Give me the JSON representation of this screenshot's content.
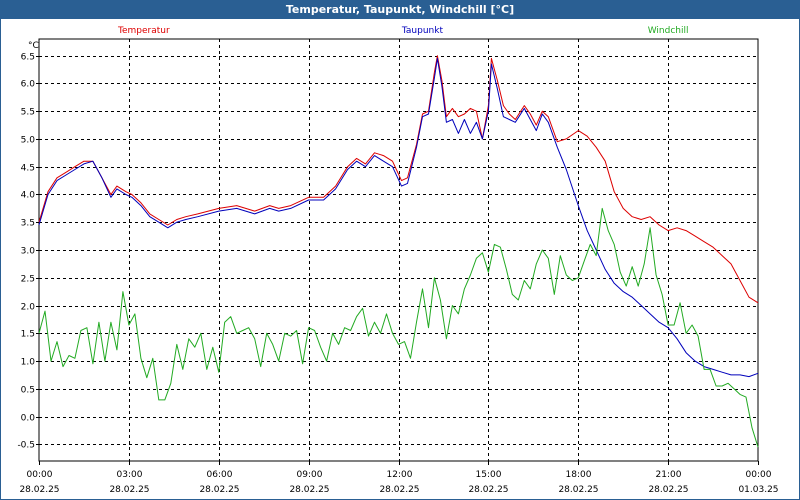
{
  "window": {
    "title": "Temperatur, Taupunkt, Windchill [°C]"
  },
  "chart_data": {
    "type": "line",
    "title": "Temperatur, Taupunkt, Windchill [°C]",
    "ylabel": "°C",
    "ylim": [
      -0.8,
      6.8
    ],
    "xlim": [
      0,
      24
    ],
    "grid": true,
    "y_ticks": [
      "6.5",
      "6.0",
      "5.5",
      "5.0",
      "4.5",
      "4.0",
      "3.5",
      "3.0",
      "2.5",
      "2.0",
      "1.5",
      "1.0",
      "0.5",
      "0.0",
      "-0.5"
    ],
    "y_tick_values": [
      6.5,
      6.0,
      5.5,
      5.0,
      4.5,
      4.0,
      3.5,
      3.0,
      2.5,
      2.0,
      1.5,
      1.0,
      0.5,
      0.0,
      -0.5
    ],
    "x_ticks": [
      {
        "x": 0,
        "time": "00:00",
        "date": "28.02.25"
      },
      {
        "x": 3,
        "time": "03:00",
        "date": "28.02.25"
      },
      {
        "x": 6,
        "time": "06:00",
        "date": "28.02.25"
      },
      {
        "x": 9,
        "time": "09:00",
        "date": "28.02.25"
      },
      {
        "x": 12,
        "time": "12:00",
        "date": "28.02.25"
      },
      {
        "x": 15,
        "time": "15:00",
        "date": "28.02.25"
      },
      {
        "x": 18,
        "time": "18:00",
        "date": "28.02.25"
      },
      {
        "x": 21,
        "time": "21:00",
        "date": "28.02.25"
      },
      {
        "x": 24,
        "time": "00:00",
        "date": "01.03.25"
      }
    ],
    "series": [
      {
        "name": "Temperatur",
        "color": "#dd0000",
        "legend_x_hours": 3.5,
        "x": [
          0,
          0.3,
          0.6,
          0.9,
          1.2,
          1.5,
          1.8,
          2.1,
          2.4,
          2.6,
          2.9,
          3.1,
          3.4,
          3.7,
          4.0,
          4.3,
          4.6,
          4.9,
          5.3,
          6.0,
          6.6,
          7.2,
          7.7,
          8.0,
          8.4,
          9.0,
          9.5,
          9.9,
          10.3,
          10.6,
          10.9,
          11.2,
          11.5,
          11.8,
          12.1,
          12.3,
          12.6,
          12.8,
          13.0,
          13.2,
          13.3,
          13.45,
          13.6,
          13.8,
          14.0,
          14.2,
          14.4,
          14.6,
          14.8,
          15.0,
          15.1,
          15.3,
          15.5,
          15.7,
          15.9,
          16.2,
          16.4,
          16.6,
          16.8,
          17.0,
          17.3,
          17.6,
          18.0,
          18.3,
          18.6,
          18.9,
          19.2,
          19.5,
          19.8,
          20.1,
          20.4,
          20.7,
          21.0,
          21.3,
          21.6,
          21.9,
          22.2,
          22.5,
          22.8,
          23.1,
          23.4,
          23.7,
          24.0
        ],
        "values": [
          3.5,
          4.05,
          4.3,
          4.4,
          4.5,
          4.6,
          4.6,
          4.3,
          4.0,
          4.15,
          4.05,
          4.0,
          3.85,
          3.65,
          3.55,
          3.45,
          3.55,
          3.6,
          3.65,
          3.75,
          3.8,
          3.7,
          3.8,
          3.75,
          3.8,
          3.95,
          3.95,
          4.15,
          4.5,
          4.65,
          4.55,
          4.75,
          4.7,
          4.6,
          4.25,
          4.3,
          4.9,
          5.45,
          5.5,
          6.2,
          6.5,
          6.05,
          5.4,
          5.55,
          5.4,
          5.45,
          5.55,
          5.5,
          5.0,
          5.6,
          6.45,
          6.05,
          5.6,
          5.45,
          5.35,
          5.6,
          5.45,
          5.25,
          5.5,
          5.4,
          4.95,
          5.0,
          5.15,
          5.05,
          4.85,
          4.6,
          4.05,
          3.75,
          3.6,
          3.55,
          3.6,
          3.45,
          3.35,
          3.4,
          3.35,
          3.25,
          3.15,
          3.05,
          2.9,
          2.75,
          2.45,
          2.15,
          2.05
        ]
      },
      {
        "name": "Taupunkt",
        "color": "#0000bb",
        "legend_x_hours": 12.8,
        "x": [
          0,
          0.3,
          0.6,
          0.9,
          1.2,
          1.5,
          1.8,
          2.1,
          2.4,
          2.6,
          2.9,
          3.1,
          3.4,
          3.7,
          4.0,
          4.3,
          4.6,
          4.9,
          5.3,
          6.0,
          6.6,
          7.2,
          7.7,
          8.0,
          8.4,
          9.0,
          9.5,
          9.9,
          10.3,
          10.6,
          10.9,
          11.2,
          11.5,
          11.8,
          12.1,
          12.3,
          12.6,
          12.8,
          13.0,
          13.2,
          13.3,
          13.45,
          13.6,
          13.8,
          14.0,
          14.2,
          14.4,
          14.6,
          14.8,
          15.0,
          15.1,
          15.3,
          15.5,
          15.7,
          15.9,
          16.2,
          16.4,
          16.6,
          16.8,
          17.0,
          17.3,
          17.6,
          18.0,
          18.3,
          18.6,
          18.9,
          19.2,
          19.5,
          19.8,
          20.1,
          20.4,
          20.7,
          21.0,
          21.3,
          21.6,
          21.9,
          22.2,
          22.5,
          22.8,
          23.1,
          23.4,
          23.7,
          24.0
        ],
        "values": [
          3.45,
          4.0,
          4.25,
          4.35,
          4.45,
          4.55,
          4.6,
          4.3,
          3.95,
          4.1,
          4.0,
          3.95,
          3.8,
          3.6,
          3.5,
          3.4,
          3.5,
          3.55,
          3.6,
          3.7,
          3.75,
          3.65,
          3.75,
          3.7,
          3.75,
          3.9,
          3.9,
          4.1,
          4.45,
          4.6,
          4.5,
          4.7,
          4.6,
          4.5,
          4.15,
          4.2,
          4.85,
          5.4,
          5.45,
          6.1,
          6.45,
          5.95,
          5.3,
          5.35,
          5.1,
          5.35,
          5.1,
          5.3,
          5.0,
          5.5,
          6.35,
          5.9,
          5.4,
          5.35,
          5.3,
          5.55,
          5.35,
          5.15,
          5.45,
          5.3,
          4.85,
          4.45,
          3.8,
          3.35,
          3.0,
          2.65,
          2.4,
          2.25,
          2.15,
          2.0,
          1.85,
          1.7,
          1.6,
          1.4,
          1.15,
          1.0,
          0.9,
          0.85,
          0.8,
          0.75,
          0.75,
          0.72,
          0.78
        ]
      },
      {
        "name": "Windchill",
        "color": "#22aa22",
        "legend_x_hours": 21.0,
        "x": [
          0,
          0.2,
          0.4,
          0.6,
          0.8,
          1.0,
          1.2,
          1.4,
          1.6,
          1.8,
          2.0,
          2.2,
          2.4,
          2.6,
          2.8,
          3.0,
          3.2,
          3.4,
          3.6,
          3.8,
          4.0,
          4.2,
          4.4,
          4.6,
          4.8,
          5.0,
          5.2,
          5.4,
          5.6,
          5.8,
          6.0,
          6.2,
          6.4,
          6.6,
          6.8,
          7.0,
          7.2,
          7.4,
          7.6,
          7.8,
          8.0,
          8.2,
          8.4,
          8.6,
          8.8,
          9.0,
          9.2,
          9.4,
          9.6,
          9.8,
          10.0,
          10.2,
          10.4,
          10.6,
          10.8,
          11.0,
          11.2,
          11.4,
          11.6,
          11.8,
          12.0,
          12.2,
          12.4,
          12.6,
          12.8,
          13.0,
          13.2,
          13.4,
          13.6,
          13.8,
          14.0,
          14.2,
          14.4,
          14.6,
          14.8,
          15.0,
          15.2,
          15.4,
          15.6,
          15.8,
          16.0,
          16.2,
          16.4,
          16.6,
          16.8,
          17.0,
          17.2,
          17.4,
          17.6,
          17.8,
          18.0,
          18.2,
          18.4,
          18.6,
          18.8,
          19.0,
          19.2,
          19.4,
          19.6,
          19.8,
          20.0,
          20.2,
          20.4,
          20.6,
          20.8,
          21.0,
          21.2,
          21.4,
          21.6,
          21.8,
          22.0,
          22.2,
          22.4,
          22.6,
          22.8,
          23.0,
          23.2,
          23.4,
          23.6,
          23.8,
          24.0
        ],
        "values": [
          1.5,
          1.9,
          1.0,
          1.35,
          0.9,
          1.1,
          1.05,
          1.55,
          1.6,
          0.95,
          1.7,
          1.0,
          1.7,
          1.2,
          2.25,
          1.65,
          1.85,
          1.05,
          0.7,
          1.05,
          0.3,
          0.3,
          0.6,
          1.3,
          0.85,
          1.4,
          1.25,
          1.5,
          0.85,
          1.25,
          0.8,
          1.7,
          1.8,
          1.5,
          1.55,
          1.6,
          1.4,
          0.9,
          1.5,
          1.3,
          1.0,
          1.5,
          1.45,
          1.55,
          0.95,
          1.6,
          1.55,
          1.25,
          1.0,
          1.5,
          1.3,
          1.6,
          1.55,
          1.8,
          1.95,
          1.45,
          1.7,
          1.5,
          1.85,
          1.5,
          1.3,
          1.35,
          1.05,
          1.7,
          2.3,
          1.6,
          2.5,
          2.1,
          1.4,
          2.0,
          1.85,
          2.3,
          2.55,
          2.85,
          2.95,
          2.6,
          3.1,
          3.05,
          2.65,
          2.2,
          2.1,
          2.45,
          2.3,
          2.75,
          3.0,
          2.85,
          2.2,
          2.9,
          2.55,
          2.45,
          2.5,
          2.8,
          3.1,
          2.9,
          3.75,
          3.35,
          3.1,
          2.6,
          2.35,
          2.7,
          2.35,
          2.75,
          3.4,
          2.55,
          2.2,
          1.65,
          1.65,
          2.05,
          1.5,
          1.65,
          1.45,
          0.85,
          0.85,
          0.55,
          0.55,
          0.6,
          0.5,
          0.4,
          0.35,
          -0.2,
          -0.55
        ]
      }
    ]
  }
}
